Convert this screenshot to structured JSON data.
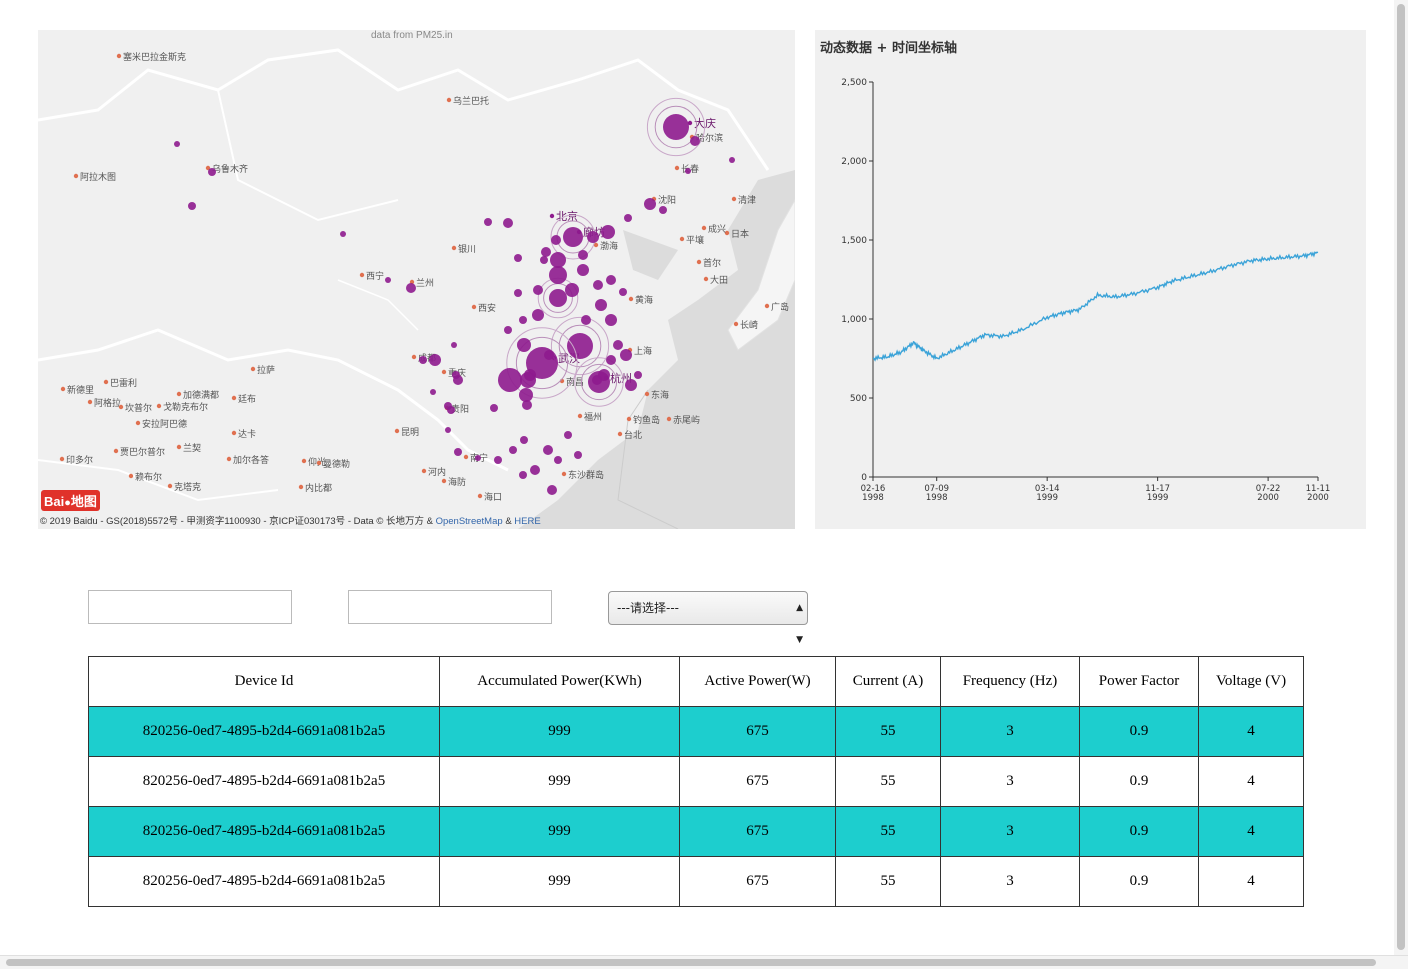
{
  "map": {
    "attribution_top": "data from PM25.in",
    "copyright": "© 2019 Baidu - GS(2018)5572号 - 甲测资字1100930 - 京ICP证030173号 - Data © 长地万方 &",
    "copyright_link1": "OpenStreetMap",
    "copyright_amp": "&",
    "copyright_link2": "HERE",
    "logo_text": "Bai 地图",
    "city_labels": [
      {
        "name": "塞米巴拉金斯克"
      },
      {
        "name": "乌兰巴托"
      },
      {
        "name": "阿拉木图"
      },
      {
        "name": "乌鲁木齐"
      },
      {
        "name": "大庆"
      },
      {
        "name": "哈尔滨"
      },
      {
        "name": "长春"
      },
      {
        "name": "沈阳"
      },
      {
        "name": "北京"
      },
      {
        "name": "廊坊"
      },
      {
        "name": "渤海"
      },
      {
        "name": "银川"
      },
      {
        "name": "西宁"
      },
      {
        "name": "兰州"
      },
      {
        "name": "西安"
      },
      {
        "name": "黄海"
      },
      {
        "name": "平壤"
      },
      {
        "name": "首尔"
      },
      {
        "name": "大田"
      },
      {
        "name": "成都"
      },
      {
        "name": "重庆"
      },
      {
        "name": "武汉"
      },
      {
        "name": "南昌"
      },
      {
        "name": "杭州"
      },
      {
        "name": "上海"
      },
      {
        "name": "东海"
      },
      {
        "name": "拉萨"
      },
      {
        "name": "贵阳"
      },
      {
        "name": "昆明"
      },
      {
        "name": "福州"
      },
      {
        "name": "台北"
      },
      {
        "name": "南宁"
      },
      {
        "name": "海口"
      },
      {
        "name": "河内"
      },
      {
        "name": "新德里"
      },
      {
        "name": "加德满都"
      },
      {
        "name": "达卡"
      },
      {
        "name": "仰光"
      },
      {
        "name": "日本"
      },
      {
        "name": "清津"
      },
      {
        "name": "长崎"
      },
      {
        "name": "广岛"
      },
      {
        "name": "巴雷利"
      },
      {
        "name": "廷布"
      },
      {
        "name": "印多尔"
      },
      {
        "name": "加尔各答"
      },
      {
        "name": "曼德勒"
      },
      {
        "name": "内比都"
      },
      {
        "name": "海防"
      },
      {
        "name": "阿格拉"
      },
      {
        "name": "坎普尔"
      },
      {
        "name": "戈勒克布尔"
      },
      {
        "name": "安拉阿巴德"
      },
      {
        "name": "兰契"
      },
      {
        "name": "贾巴尔普尔"
      },
      {
        "name": "赖布尔"
      },
      {
        "name": "克塔克"
      },
      {
        "name": "钓鱼岛"
      },
      {
        "name": "赤尾屿"
      },
      {
        "name": "东沙群岛"
      },
      {
        "name": "成兴"
      }
    ]
  },
  "chart_data": {
    "type": "line",
    "title": "动态数据 + 时间坐标轴",
    "xlabel": "",
    "ylabel": "",
    "ylim": [
      0,
      2500
    ],
    "yticks": [
      "0",
      "500",
      "1,000",
      "1,500",
      "2,000",
      "2,500"
    ],
    "xticks": [
      {
        "date": "1998-02-16",
        "line1": "02-16",
        "line2": "1998"
      },
      {
        "date": "1998-07-09",
        "line1": "07-09",
        "line2": "1998"
      },
      {
        "date": "1999-03-14",
        "line1": "03-14",
        "line2": "1999"
      },
      {
        "date": "1999-11-17",
        "line1": "11-17",
        "line2": "1999"
      },
      {
        "date": "2000-07-22",
        "line1": "07-22",
        "line2": "2000"
      },
      {
        "date": "2000-11-11",
        "line1": "11-11",
        "line2": "2000"
      }
    ],
    "x_start": "1998-02-16",
    "x_end": "2000-11-11",
    "series": [
      {
        "color": "#3ba3d8",
        "points": [
          {
            "x": "1998-02-16",
            "y": 750
          },
          {
            "x": "1998-03-20",
            "y": 760
          },
          {
            "x": "1998-04-20",
            "y": 790
          },
          {
            "x": "1998-05-18",
            "y": 850
          },
          {
            "x": "1998-06-10",
            "y": 800
          },
          {
            "x": "1998-07-09",
            "y": 750
          },
          {
            "x": "1998-08-15",
            "y": 800
          },
          {
            "x": "1998-09-20",
            "y": 850
          },
          {
            "x": "1998-10-25",
            "y": 900
          },
          {
            "x": "1998-12-05",
            "y": 890
          },
          {
            "x": "1999-01-15",
            "y": 930
          },
          {
            "x": "1999-03-14",
            "y": 1010
          },
          {
            "x": "1999-04-20",
            "y": 1040
          },
          {
            "x": "1999-05-25",
            "y": 1060
          },
          {
            "x": "1999-07-05",
            "y": 1150
          },
          {
            "x": "1999-08-15",
            "y": 1140
          },
          {
            "x": "1999-09-25",
            "y": 1160
          },
          {
            "x": "1999-11-17",
            "y": 1200
          },
          {
            "x": "1999-12-20",
            "y": 1240
          },
          {
            "x": "2000-02-01",
            "y": 1270
          },
          {
            "x": "2000-03-15",
            "y": 1300
          },
          {
            "x": "2000-05-01",
            "y": 1340
          },
          {
            "x": "2000-06-15",
            "y": 1370
          },
          {
            "x": "2000-07-22",
            "y": 1380
          },
          {
            "x": "2000-09-01",
            "y": 1390
          },
          {
            "x": "2000-10-10",
            "y": 1400
          },
          {
            "x": "2000-11-11",
            "y": 1420
          }
        ]
      }
    ]
  },
  "filters": {
    "input1_value": "",
    "input2_value": "",
    "select_value": "---请选择---"
  },
  "table": {
    "headers": [
      "Device Id",
      "Accumulated Power(KWh)",
      "Active Power(W)",
      "Current (A)",
      "Frequency (Hz)",
      "Power Factor",
      "Voltage (V)"
    ],
    "highlight_color": "#1dcece",
    "rows": [
      {
        "highlighted": true,
        "cells": [
          "820256-0ed7-4895-b2d4-6691a081b2a5",
          "999",
          "675",
          "55",
          "3",
          "0.9",
          "4"
        ]
      },
      {
        "highlighted": false,
        "cells": [
          "820256-0ed7-4895-b2d4-6691a081b2a5",
          "999",
          "675",
          "55",
          "3",
          "0.9",
          "4"
        ]
      },
      {
        "highlighted": true,
        "cells": [
          "820256-0ed7-4895-b2d4-6691a081b2a5",
          "999",
          "675",
          "55",
          "3",
          "0.9",
          "4"
        ]
      },
      {
        "highlighted": false,
        "cells": [
          "820256-0ed7-4895-b2d4-6691a081b2a5",
          "999",
          "675",
          "55",
          "3",
          "0.9",
          "4"
        ]
      }
    ]
  }
}
